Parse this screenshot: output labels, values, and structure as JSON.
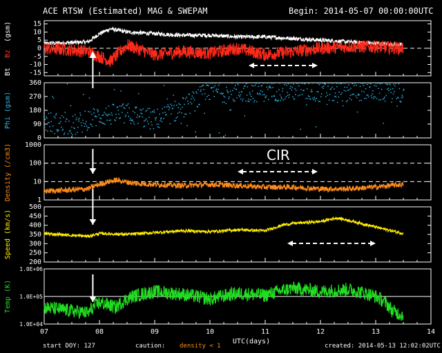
{
  "header": {
    "title": "ACE RTSW (Estimated) MAG & SWEPAM",
    "begin": "Begin: 2014-05-07 00:00:00UTC"
  },
  "footer": {
    "start_doy": "start DOY: 127",
    "caution": "caution:",
    "density_note": "density < 1",
    "created": "created: 2014-05-13 12:02:02UTC"
  },
  "colors": {
    "background": "#000000",
    "axes": "#ffffff",
    "bt": "#ffffff",
    "bz": "#ff2a1a",
    "phi": "#29b5e8",
    "density": "#ff8c1a",
    "speed": "#ffee00",
    "temp": "#22dd22",
    "bt_label": "#ffffff",
    "bz_label": "#ff3333"
  },
  "chart_data": [
    {
      "type": "line",
      "panel": "mag",
      "ylabel_parts": [
        "Bt",
        "Bz",
        "(gsm)"
      ],
      "ylim": [
        -17,
        17
      ],
      "yticks": [
        -15,
        -10,
        -5,
        0,
        5,
        10,
        15
      ],
      "xlim": [
        7,
        14
      ],
      "series": [
        {
          "name": "Bt",
          "x": [
            7.0,
            7.5,
            7.8,
            8.0,
            8.2,
            8.5,
            9.0,
            9.5,
            10.0,
            10.5,
            11.0,
            11.5,
            12.0,
            12.5,
            13.0,
            13.5
          ],
          "values": [
            3,
            3.5,
            4,
            9,
            12,
            10,
            9,
            8,
            8,
            7,
            7,
            6,
            5,
            4,
            3,
            2
          ]
        },
        {
          "name": "Bz",
          "x": [
            7.0,
            7.5,
            7.8,
            8.0,
            8.2,
            8.5,
            9.0,
            9.5,
            10.0,
            10.5,
            11.0,
            11.5,
            12.0,
            12.5,
            13.0,
            13.5
          ],
          "values": [
            0,
            -1,
            -2,
            -5,
            -8,
            2,
            -4,
            -2,
            -3,
            0,
            -4,
            -2,
            0,
            1,
            1,
            0
          ]
        }
      ],
      "annotations": [
        {
          "type": "dashed-arrow",
          "x": [
            10.7,
            11.95
          ]
        },
        {
          "type": "vertical-arrow",
          "x": 7.88
        }
      ]
    },
    {
      "type": "scatter",
      "panel": "phi",
      "ylabel": "Phi (gsm)",
      "ylim": [
        0,
        360
      ],
      "yticks": [
        0,
        90,
        180,
        270,
        360
      ],
      "xlim": [
        7,
        14
      ],
      "series": [
        {
          "name": "Phi",
          "x": [
            7.0,
            7.5,
            8.0,
            8.5,
            9.0,
            9.5,
            10.0,
            10.5,
            11.0,
            11.5,
            12.0,
            12.5,
            13.0,
            13.5
          ],
          "values": [
            110,
            80,
            150,
            160,
            120,
            200,
            310,
            300,
            310,
            315,
            305,
            310,
            315,
            300
          ]
        }
      ]
    },
    {
      "type": "line",
      "panel": "density",
      "ylabel": "Density (/cm3)",
      "ylim": [
        1,
        1000
      ],
      "scale": "log",
      "yticks": [
        1,
        10,
        100,
        1000
      ],
      "xlim": [
        7,
        14
      ],
      "series": [
        {
          "name": "Density",
          "x": [
            7.0,
            7.5,
            7.8,
            8.0,
            8.3,
            8.6,
            9.0,
            9.5,
            10.0,
            10.5,
            11.0,
            11.5,
            12.0,
            12.5,
            13.0,
            13.5
          ],
          "values": [
            3,
            3.5,
            4,
            7,
            12,
            8,
            7,
            6,
            7,
            6,
            5,
            5,
            4,
            4,
            5,
            7
          ]
        }
      ],
      "annotations": [
        {
          "type": "text",
          "text": "CIR"
        },
        {
          "type": "dashed-arrow",
          "x": [
            10.5,
            11.95
          ]
        }
      ]
    },
    {
      "type": "line",
      "panel": "speed",
      "ylabel": "Speed (km/s)",
      "ylim": [
        200,
        500
      ],
      "yticks": [
        200,
        250,
        300,
        350,
        400,
        450,
        500
      ],
      "xlim": [
        7,
        14
      ],
      "series": [
        {
          "name": "Speed",
          "x": [
            7.0,
            7.5,
            7.8,
            8.0,
            8.5,
            9.0,
            9.5,
            10.0,
            10.5,
            11.0,
            11.3,
            11.5,
            12.0,
            12.3,
            12.6,
            13.0,
            13.5
          ],
          "values": [
            355,
            345,
            340,
            355,
            350,
            360,
            370,
            365,
            375,
            370,
            400,
            410,
            420,
            440,
            420,
            390,
            355
          ]
        }
      ],
      "annotations": [
        {
          "type": "dashed-arrow",
          "x": [
            11.4,
            13.0
          ]
        }
      ]
    },
    {
      "type": "line",
      "panel": "temp",
      "ylabel": "Temp (K)",
      "ylim": [
        10000,
        1000000
      ],
      "scale": "log",
      "ytick_labels": [
        "1.0E+04",
        "1.0E+05",
        "1.0E+06"
      ],
      "xlim": [
        7,
        14
      ],
      "xticks": [
        7,
        8,
        9,
        10,
        11,
        12,
        13,
        14
      ],
      "xticklabels": [
        "07",
        "08",
        "09",
        "10",
        "11",
        "12",
        "13",
        "14"
      ],
      "xlabel": "UTC(days)",
      "series": [
        {
          "name": "Temp",
          "x": [
            7.0,
            7.5,
            7.8,
            8.0,
            8.3,
            8.6,
            9.0,
            9.5,
            10.0,
            10.5,
            11.0,
            11.5,
            12.0,
            12.5,
            13.0,
            13.3,
            13.5
          ],
          "values": [
            40000,
            30000,
            25000,
            60000,
            40000,
            100000,
            150000,
            120000,
            80000,
            130000,
            110000,
            200000,
            150000,
            180000,
            100000,
            30000,
            20000
          ]
        }
      ]
    }
  ],
  "labels": {
    "mag_bt": "Bt",
    "mag_bz": "Bz",
    "mag_gsm": "(gsm)",
    "phi": "Phi (gsm)",
    "density": "Density (/cm3)",
    "speed": "Speed (km/s)",
    "temp": "Temp (K)",
    "xlabel": "UTC(days)",
    "cir": "CIR"
  }
}
